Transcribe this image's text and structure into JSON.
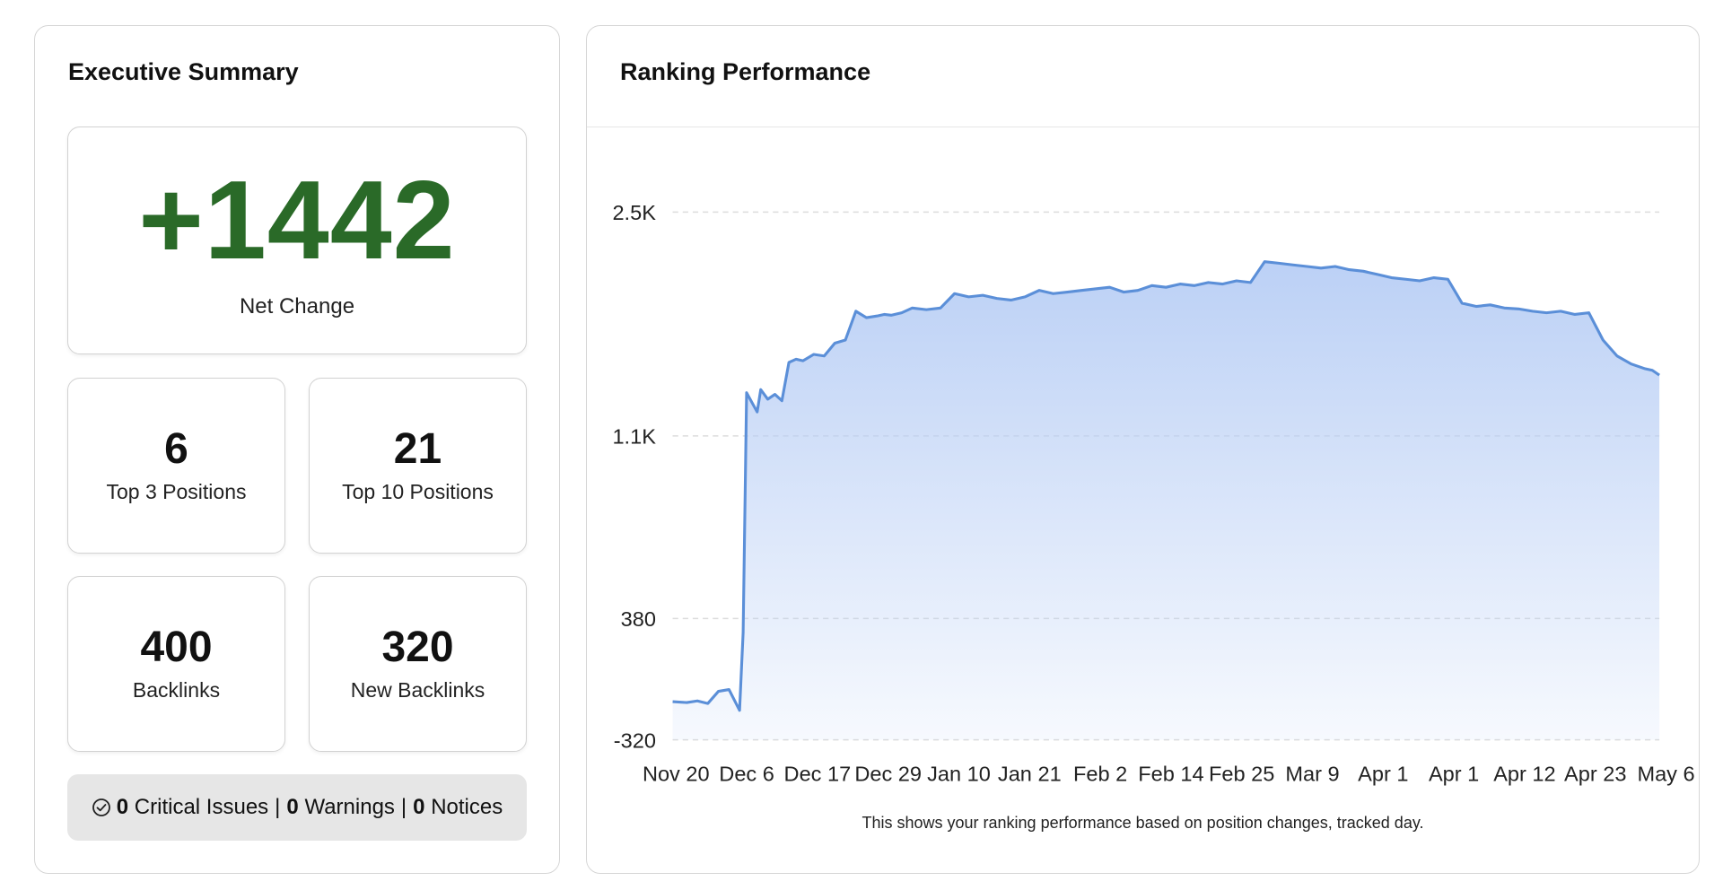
{
  "summary": {
    "title": "Executive Summary",
    "net_change": {
      "value": "+1442",
      "label": "Net Change",
      "color": "#2a6a28"
    },
    "top3": {
      "value": "6",
      "label": "Top 3 Positions"
    },
    "top10": {
      "value": "21",
      "label": "Top 10 Positions"
    },
    "backlinks": {
      "value": "400",
      "label": "Backlinks"
    },
    "new_backlinks": {
      "value": "320",
      "label": "New Backlinks"
    },
    "issues": {
      "icon": "check-circle-icon",
      "critical_count": "0",
      "critical_label": "Critical Issues",
      "warnings_count": "0",
      "warnings_label": "Warnings",
      "notices_count": "0",
      "notices_label": "Notices",
      "separator": "|"
    }
  },
  "ranking": {
    "title": "Ranking Performance",
    "caption": "This shows your ranking performance based on position changes, tracked day."
  },
  "chart_data": {
    "type": "area",
    "title": "",
    "xlabel": "",
    "ylabel": "",
    "grid": true,
    "line_color": "#5b8fd8",
    "fill_color": "#b8cef5",
    "y_ticks": [
      {
        "label": "2.5K",
        "value": 2500
      },
      {
        "label": "1.1K",
        "value": 1100
      },
      {
        "label": "380",
        "value": 380
      },
      {
        "label": "-320",
        "value": -320
      }
    ],
    "ylim": [
      -320,
      2500
    ],
    "x_ticks": [
      "Nov 20",
      "Dec 6",
      "Dec 17",
      "Dec 29",
      "Jan 10",
      "Jan 21",
      "Feb 2",
      "Feb 14",
      "Feb 25",
      "Mar 9",
      "Apr 1",
      "Apr 1",
      "Apr 12",
      "Apr 23",
      "May 6"
    ],
    "xlim": [
      0,
      14
    ],
    "x": [
      0,
      0.2,
      0.35,
      0.5,
      0.65,
      0.8,
      0.95,
      1.0,
      1.05,
      1.2,
      1.25,
      1.35,
      1.45,
      1.55,
      1.65,
      1.75,
      1.85,
      2.0,
      2.15,
      2.3,
      2.45,
      2.6,
      2.75,
      2.9,
      3.0,
      3.1,
      3.25,
      3.4,
      3.6,
      3.8,
      4.0,
      4.2,
      4.4,
      4.6,
      4.8,
      5.0,
      5.2,
      5.4,
      5.6,
      5.8,
      6.0,
      6.2,
      6.4,
      6.6,
      6.8,
      7.0,
      7.2,
      7.4,
      7.6,
      7.8,
      8.0,
      8.2,
      8.4,
      8.6,
      8.8,
      9.0,
      9.2,
      9.4,
      9.6,
      9.8,
      10.0,
      10.2,
      10.4,
      10.6,
      10.8,
      11.0,
      11.2,
      11.4,
      11.6,
      11.8,
      12.0,
      12.2,
      12.4,
      12.6,
      12.8,
      13.0,
      13.2,
      13.4,
      13.6,
      13.8,
      13.9,
      14.0
    ],
    "y": [
      -100,
      -105,
      -95,
      -110,
      -40,
      -30,
      -150,
      300,
      1370,
      1250,
      1390,
      1330,
      1360,
      1320,
      1560,
      1580,
      1570,
      1610,
      1600,
      1680,
      1700,
      1880,
      1840,
      1850,
      1860,
      1855,
      1870,
      1900,
      1890,
      1900,
      1990,
      1970,
      1980,
      1960,
      1950,
      1970,
      2010,
      1990,
      2000,
      2010,
      2020,
      2030,
      2000,
      2010,
      2040,
      2030,
      2050,
      2040,
      2060,
      2050,
      2070,
      2060,
      2190,
      2180,
      2170,
      2160,
      2150,
      2160,
      2140,
      2130,
      2110,
      2090,
      2080,
      2070,
      2090,
      2080,
      1930,
      1910,
      1920,
      1900,
      1895,
      1880,
      1870,
      1880,
      1860,
      1870,
      1700,
      1600,
      1550,
      1520,
      1510,
      1480
    ]
  }
}
